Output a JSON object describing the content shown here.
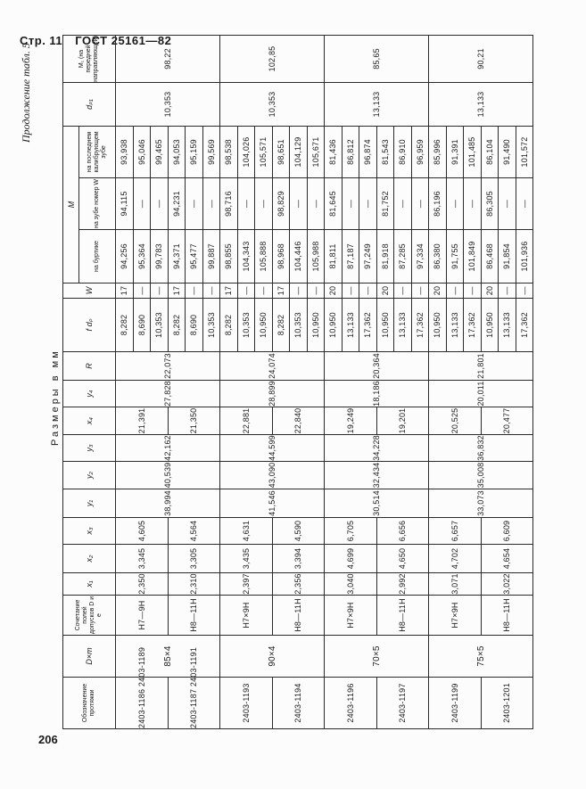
{
  "page": {
    "page_label": "Стр. 11",
    "standard": "ГОСТ 25161—82",
    "page_number": "206",
    "continuation": "Продолжение табл. 5",
    "units_caption": "Размеры в мм"
  },
  "table": {
    "headers": {
      "designation": "Обозначение протяжки",
      "dm": "D×m",
      "tolerance": "Сочетание полей допусков D и e",
      "x1": "x₁",
      "x2": "x₂",
      "x3": "x₃",
      "y1": "y₁",
      "y2": "y₂",
      "y3": "y₃",
      "x4": "x₄",
      "y4": "y₄",
      "r": "R",
      "fdp": "f dₚ",
      "w": "W",
      "m": "M",
      "m_collar": "на буртике",
      "m_tooth_w": "на зубе номер W",
      "m_last": "на последнем калибрующем зубе",
      "dp1": "dₚ₁",
      "m1": "M₁ (на передней направляющей)"
    },
    "size_groups": [
      {
        "dm": "85×4",
        "y1": "38,994",
        "y2": "40,539",
        "y3": "42,162",
        "y4": "27,828",
        "r": "22,073",
        "dp1": "10,353",
        "m1": "98,22",
        "groups": [
          {
            "designation": "2403-1186 2403-1189",
            "tolerance": "H7—9H",
            "x1": "2,350",
            "x2": "3,345",
            "x3": "4,605",
            "x4": "21,391",
            "rows": [
              {
                "fdp": "8,282",
                "w": "17",
                "m_collar": "94,256",
                "m_tooth_w": "94,115",
                "m_last": "93,938"
              },
              {
                "fdp": "8,690",
                "w": "—",
                "m_collar": "95,364",
                "m_tooth_w": "—",
                "m_last": "95,046"
              },
              {
                "fdp": "10,353",
                "w": "—",
                "m_collar": "99,783",
                "m_tooth_w": "—",
                "m_last": "99,465"
              }
            ]
          },
          {
            "designation": "2403-1187 2403-1191",
            "tolerance": "H8—11H",
            "x1": "2,310",
            "x2": "3,305",
            "x3": "4,564",
            "x4": "21,350",
            "rows": [
              {
                "fdp": "8,282",
                "w": "17",
                "m_collar": "94,371",
                "m_tooth_w": "94,231",
                "m_last": "94,053"
              },
              {
                "fdp": "8,690",
                "w": "—",
                "m_collar": "95,477",
                "m_tooth_w": "—",
                "m_last": "95,159"
              },
              {
                "fdp": "10,353",
                "w": "—",
                "m_collar": "99,887",
                "m_tooth_w": "—",
                "m_last": "99,569"
              }
            ]
          }
        ]
      },
      {
        "dm": "90×4",
        "y1": "41,546",
        "y2": "43,090",
        "y3": "44,599",
        "y4": "28,899",
        "r": "24,074",
        "dp1": "10,353",
        "m1": "102,85",
        "groups": [
          {
            "designation": "2403-1193",
            "tolerance": "H7×9H",
            "x1": "2,397",
            "x2": "3,435",
            "x3": "4,631",
            "x4": "22,881",
            "rows": [
              {
                "fdp": "8,282",
                "w": "17",
                "m_collar": "98,855",
                "m_tooth_w": "98,716",
                "m_last": "98,538"
              },
              {
                "fdp": "10,353",
                "w": "—",
                "m_collar": "104,343",
                "m_tooth_w": "—",
                "m_last": "104,026"
              },
              {
                "fdp": "10,950",
                "w": "—",
                "m_collar": "105,888",
                "m_tooth_w": "—",
                "m_last": "105,571"
              }
            ]
          },
          {
            "designation": "2403-1194",
            "tolerance": "H8—11H",
            "x1": "2,356",
            "x2": "3,394",
            "x3": "4,590",
            "x4": "22,840",
            "rows": [
              {
                "fdp": "8,282",
                "w": "17",
                "m_collar": "98,968",
                "m_tooth_w": "98,829",
                "m_last": "98,651"
              },
              {
                "fdp": "10,353",
                "w": "—",
                "m_collar": "104,446",
                "m_tooth_w": "—",
                "m_last": "104,129"
              },
              {
                "fdp": "10,950",
                "w": "—",
                "m_collar": "105,988",
                "m_tooth_w": "—",
                "m_last": "105,671"
              }
            ]
          }
        ]
      },
      {
        "dm": "70×5",
        "y1": "30,514",
        "y2": "32,434",
        "y3": "34,228",
        "y4": "18,186",
        "r": "20,364",
        "dp1": "13,133",
        "m1": "85,65",
        "groups": [
          {
            "designation": "2403-1196",
            "tolerance": "H7×9H",
            "x1": "3,040",
            "x2": "4,699",
            "x3": "6,705",
            "x4": "19,249",
            "rows": [
              {
                "fdp": "10,950",
                "w": "20",
                "m_collar": "81,811",
                "m_tooth_w": "81,645",
                "m_last": "81,436"
              },
              {
                "fdp": "13,133",
                "w": "—",
                "m_collar": "87,187",
                "m_tooth_w": "—",
                "m_last": "86,812"
              },
              {
                "fdp": "17,362",
                "w": "—",
                "m_collar": "97,249",
                "m_tooth_w": "—",
                "m_last": "96,874"
              }
            ]
          },
          {
            "designation": "2403-1197",
            "tolerance": "H8—11H",
            "x1": "2,992",
            "x2": "4,650",
            "x3": "6,656",
            "x4": "19,201",
            "rows": [
              {
                "fdp": "10,950",
                "w": "20",
                "m_collar": "81,918",
                "m_tooth_w": "81,752",
                "m_last": "81,543"
              },
              {
                "fdp": "13,133",
                "w": "—",
                "m_collar": "87,285",
                "m_tooth_w": "—",
                "m_last": "86,910"
              },
              {
                "fdp": "17,362",
                "w": "—",
                "m_collar": "97,334",
                "m_tooth_w": "—",
                "m_last": "96,959"
              }
            ]
          }
        ]
      },
      {
        "dm": "75×5",
        "y1": "33,073",
        "y2": "35,008",
        "y3": "36,832",
        "y4": "20,011",
        "r": "21,801",
        "dp1": "13,133",
        "m1": "90,21",
        "groups": [
          {
            "designation": "2403-1199",
            "tolerance": "H7×9H",
            "x1": "3,071",
            "x2": "4,702",
            "x3": "6,657",
            "x4": "20,525",
            "rows": [
              {
                "fdp": "10,950",
                "w": "20",
                "m_collar": "86,380",
                "m_tooth_w": "86,196",
                "m_last": "85,996"
              },
              {
                "fdp": "13,133",
                "w": "—",
                "m_collar": "91,755",
                "m_tooth_w": "—",
                "m_last": "91,391"
              },
              {
                "fdp": "17,362",
                "w": "—",
                "m_collar": "101,849",
                "m_tooth_w": "—",
                "m_last": "101,485"
              }
            ]
          },
          {
            "designation": "2403-1201",
            "tolerance": "H8—11H",
            "x1": "3,022",
            "x2": "4,654",
            "x3": "6,609",
            "x4": "20,477",
            "rows": [
              {
                "fdp": "10,950",
                "w": "20",
                "m_collar": "86,468",
                "m_tooth_w": "86,305",
                "m_last": "86,104"
              },
              {
                "fdp": "13,133",
                "w": "—",
                "m_collar": "91,854",
                "m_tooth_w": "—",
                "m_last": "91,490"
              },
              {
                "fdp": "17,362",
                "w": "—",
                "m_collar": "101,936",
                "m_tooth_w": "—",
                "m_last": "101,572"
              }
            ]
          }
        ]
      }
    ]
  }
}
